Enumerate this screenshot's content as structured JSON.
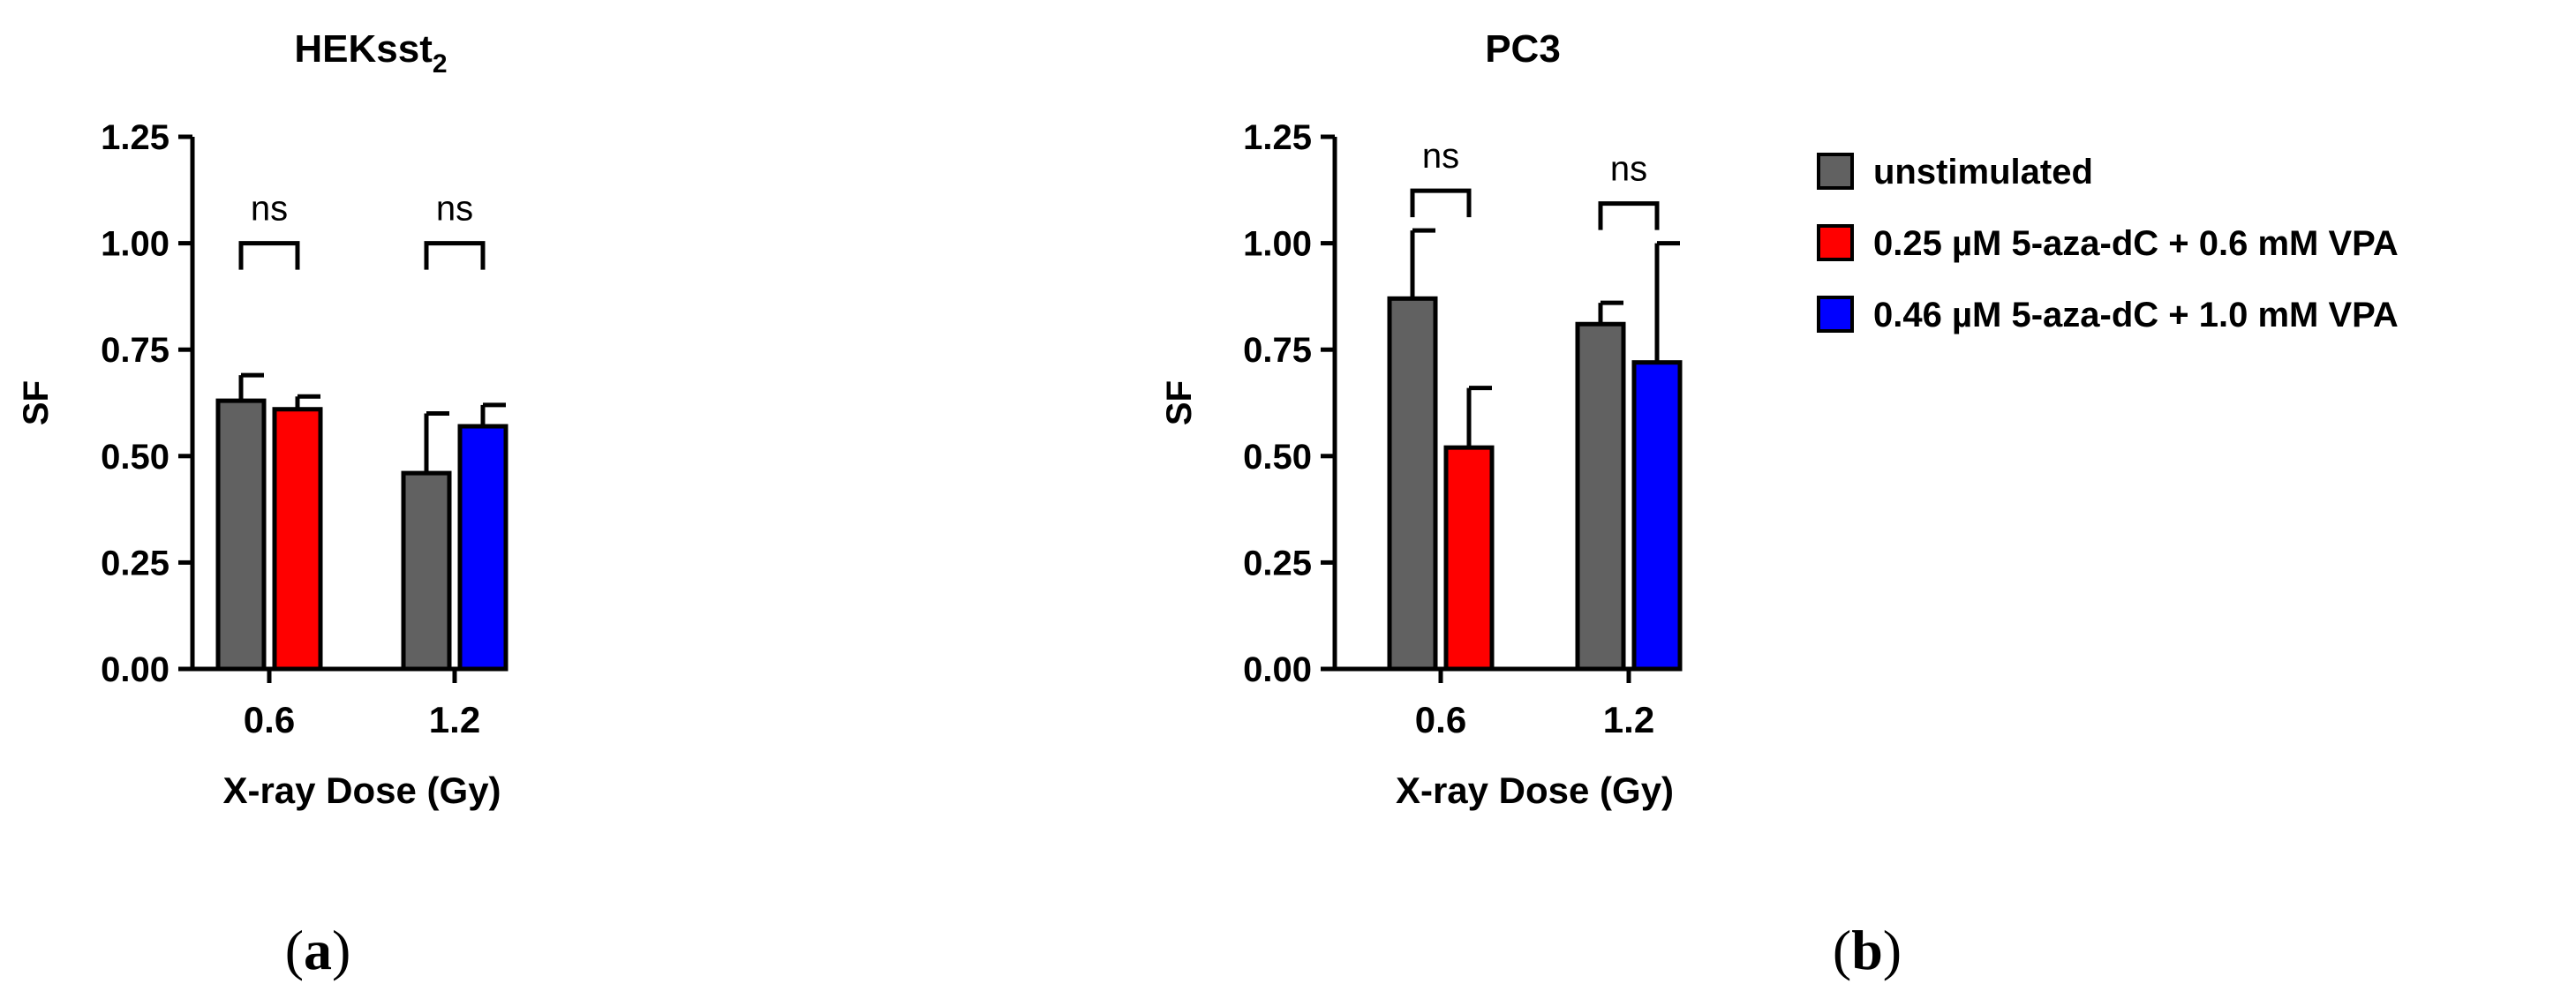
{
  "panels": [
    {
      "title": "HEKsst",
      "title_sub": "2",
      "panel_label_open": "(",
      "panel_label_letter": "a",
      "panel_label_close": ")"
    },
    {
      "title": "PC3",
      "title_sub": "",
      "panel_label_open": "(",
      "panel_label_letter": "b",
      "panel_label_close": ")"
    }
  ],
  "legend": {
    "position": "right",
    "items": [
      {
        "label": "unstimulated",
        "color": "#616161"
      },
      {
        "label": "0.25 µM 5-aza-dC + 0.6 mM VPA",
        "color": "#ff0000"
      },
      {
        "label": "0.46 µM 5-aza-dC + 1.0 mM VPA",
        "color": "#0000ff"
      }
    ]
  },
  "chart_data": [
    {
      "type": "bar",
      "title": "HEKsst2",
      "xlabel": "X-ray Dose (Gy)",
      "ylabel": "SF",
      "ylim": [
        0,
        1.25
      ],
      "yticks": [
        "0.00",
        "0.25",
        "0.50",
        "0.75",
        "1.00",
        "1.25"
      ],
      "categories": [
        "0.6",
        "1.2"
      ],
      "series": [
        {
          "name": "unstimulated",
          "values": [
            0.63,
            0.46
          ],
          "errors": [
            0.06,
            0.14
          ]
        },
        {
          "name": "0.25 µM 5-aza-dC + 0.6 mM VPA",
          "values": [
            0.61,
            null
          ],
          "errors": [
            0.03,
            null
          ]
        },
        {
          "name": "0.46 µM 5-aza-dC + 1.0 mM VPA",
          "values": [
            null,
            0.57
          ],
          "errors": [
            null,
            0.05
          ]
        }
      ],
      "annotations": [
        "ns",
        "ns"
      ],
      "grid": false
    },
    {
      "type": "bar",
      "title": "PC3",
      "xlabel": "X-ray Dose (Gy)",
      "ylabel": "SF",
      "ylim": [
        0,
        1.25
      ],
      "yticks": [
        "0.00",
        "0.25",
        "0.50",
        "0.75",
        "1.00",
        "1.25"
      ],
      "categories": [
        "0.6",
        "1.2"
      ],
      "series": [
        {
          "name": "unstimulated",
          "values": [
            0.87,
            0.81
          ],
          "errors": [
            0.16,
            0.05
          ]
        },
        {
          "name": "0.25 µM 5-aza-dC + 0.6 mM VPA",
          "values": [
            0.52,
            null
          ],
          "errors": [
            0.14,
            null
          ]
        },
        {
          "name": "0.46 µM 5-aza-dC + 1.0 mM VPA",
          "values": [
            null,
            0.72
          ],
          "errors": [
            null,
            0.28
          ]
        }
      ],
      "annotations": [
        "ns",
        "ns"
      ],
      "grid": false
    }
  ]
}
